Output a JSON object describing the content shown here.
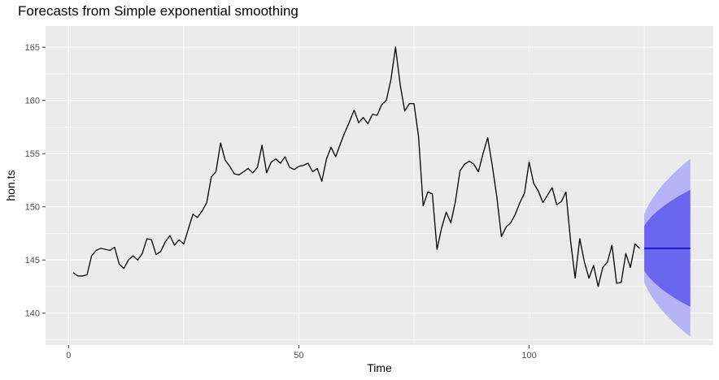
{
  "chart_data": {
    "type": "line",
    "title": "Forecasts from Simple exponential smoothing",
    "xlabel": "Time",
    "ylabel": "hon.ts",
    "xlim": [
      -5,
      140
    ],
    "ylim": [
      137,
      167
    ],
    "x_ticks": [
      0,
      50,
      100
    ],
    "y_ticks": [
      140,
      145,
      150,
      155,
      160,
      165
    ],
    "grid": true,
    "legend": "none",
    "colors": {
      "panel": "#ebebeb",
      "grid": "#ffffff",
      "series": "#000000",
      "forecast_line": "#0000cc",
      "band_80": "#6b66f0",
      "band_95": "#b6b3f6"
    },
    "series": [
      {
        "x": [
          1,
          2,
          3,
          4,
          5,
          6,
          7,
          8,
          9,
          10,
          11,
          12,
          13,
          14,
          15,
          16,
          17,
          18,
          19,
          20,
          21,
          22,
          23,
          24,
          25,
          26,
          27,
          28,
          29,
          30,
          31,
          32,
          33,
          34,
          35,
          36,
          37,
          38,
          39,
          40,
          41,
          42,
          43,
          44,
          45,
          46,
          47,
          48,
          49,
          50,
          51,
          52,
          53,
          54,
          55,
          56,
          57,
          58,
          59,
          60,
          61,
          62,
          63,
          64,
          65,
          66,
          67,
          68,
          69,
          70,
          71,
          72,
          73,
          74,
          75,
          76,
          77,
          78,
          79,
          80,
          81,
          82,
          83,
          84,
          85,
          86,
          87,
          88,
          89,
          90,
          91,
          92,
          93,
          94,
          95,
          96,
          97,
          98,
          99,
          100,
          101,
          102,
          103,
          104,
          105,
          106,
          107,
          108,
          109,
          110,
          111,
          112,
          113,
          114,
          115,
          116,
          117,
          118,
          119,
          120,
          121,
          122,
          123,
          124
        ],
        "values": [
          143.8,
          143.5,
          143.5,
          143.6,
          145.4,
          145.9,
          146.1,
          146.0,
          145.9,
          146.2,
          144.6,
          144.2,
          145.0,
          145.4,
          145.0,
          145.6,
          147.0,
          146.9,
          145.5,
          145.8,
          146.7,
          147.3,
          146.4,
          146.9,
          146.5,
          147.9,
          149.3,
          149.0,
          149.6,
          150.4,
          152.8,
          153.3,
          156.0,
          154.4,
          153.8,
          153.1,
          153.0,
          153.3,
          153.6,
          153.2,
          153.7,
          155.8,
          153.2,
          154.2,
          154.5,
          154.1,
          154.7,
          153.7,
          153.5,
          153.8,
          153.9,
          154.1,
          153.3,
          153.6,
          152.4,
          154.5,
          155.6,
          154.7,
          155.9,
          157.0,
          158.0,
          159.1,
          157.9,
          158.4,
          157.8,
          158.7,
          158.6,
          159.6,
          160.0,
          162.0,
          165.0,
          161.5,
          159.0,
          159.7,
          159.7,
          156.6,
          150.1,
          151.4,
          151.2,
          146.0,
          148.0,
          149.5,
          148.5,
          150.5,
          153.4,
          154.0,
          154.3,
          154.0,
          153.3,
          155.0,
          156.5,
          153.9,
          150.9,
          147.2,
          148.1,
          148.5,
          149.3,
          150.4,
          151.3,
          154.2,
          152.2,
          151.5,
          150.4,
          151.1,
          151.8,
          150.2,
          150.5,
          151.4,
          146.8,
          143.3,
          147.0,
          144.8,
          143.3,
          144.5,
          142.5,
          144.3,
          144.8,
          146.4,
          142.8,
          142.9,
          145.6,
          144.3,
          146.5,
          146.1
        ]
      }
    ],
    "forecast": {
      "x": [
        125,
        135
      ],
      "point": 146.1,
      "lo80": [
        144.0,
        140.6
      ],
      "hi80": [
        148.2,
        151.6
      ],
      "lo95": [
        142.9,
        137.8
      ],
      "hi95": [
        149.3,
        154.5
      ]
    }
  }
}
